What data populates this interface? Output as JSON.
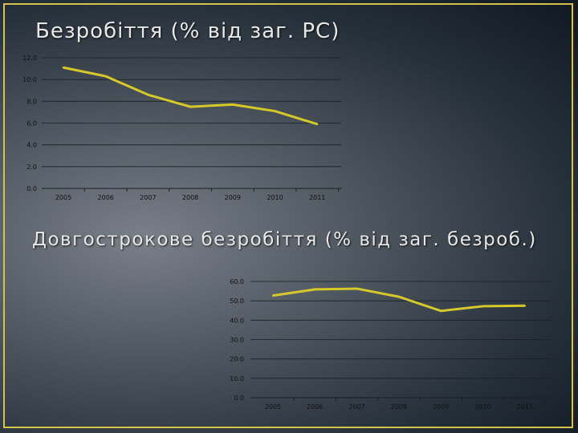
{
  "colors": {
    "series": "#d4c928",
    "frame": "#d4c24a"
  },
  "chart_data": [
    {
      "type": "line",
      "title": "Безробіття (% від заг. РС)",
      "xlabel": "",
      "ylabel": "",
      "categories": [
        "2005",
        "2006",
        "2007",
        "2008",
        "2009",
        "2010",
        "2011"
      ],
      "yticks": [
        "0.0",
        "2.0",
        "4.0",
        "6.0",
        "8.0",
        "10.0",
        "12.0"
      ],
      "ylim": [
        0,
        12
      ],
      "grid": true,
      "series": [
        {
          "values": [
            11.1,
            10.3,
            8.6,
            7.5,
            7.7,
            7.1,
            5.9
          ]
        }
      ]
    },
    {
      "type": "line",
      "title": "Довгострокове безробіття (% від заг. безроб.)",
      "xlabel": "",
      "ylabel": "",
      "categories": [
        "2005",
        "2006",
        "2007",
        "2008",
        "2009",
        "2010",
        "2011"
      ],
      "yticks": [
        "0.0",
        "10.0",
        "20.0",
        "30.0",
        "40.0",
        "50.0",
        "60.0"
      ],
      "ylim": [
        0,
        60
      ],
      "grid": true,
      "series": [
        {
          "values": [
            52.7,
            55.9,
            56.3,
            52.1,
            44.8,
            47.2,
            47.5
          ]
        }
      ]
    }
  ]
}
